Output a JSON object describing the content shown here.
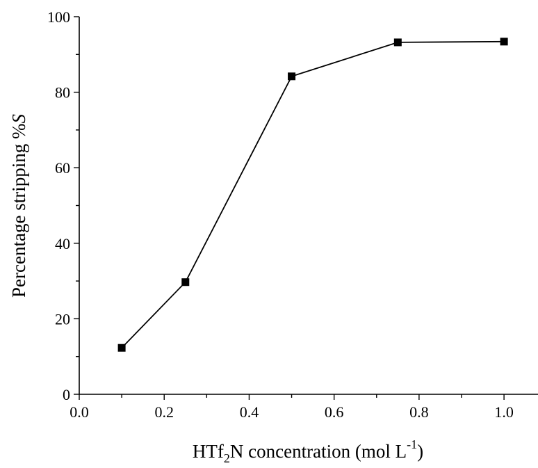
{
  "chart_data": {
    "type": "line",
    "xlabel": {
      "main": "HTf",
      "sub": "2",
      "mid": "N concentration (mol L",
      "sup": "-1",
      "end": ")"
    },
    "ylabel": {
      "main": "Percentage stripping %",
      "italic": "S"
    },
    "xlim": [
      0.0,
      1.08
    ],
    "ylim": [
      0,
      100
    ],
    "xticks": [
      "0.0",
      "0.2",
      "0.4",
      "0.6",
      "0.8",
      "1.0"
    ],
    "yticks": [
      "0",
      "20",
      "40",
      "60",
      "80",
      "100"
    ],
    "grid": false,
    "series": [
      {
        "marker": "square",
        "color": "#000000",
        "x": [
          0.1,
          0.25,
          0.5,
          0.75,
          1.0
        ],
        "y": [
          12.3,
          29.7,
          84.2,
          93.2,
          93.4
        ]
      }
    ]
  }
}
